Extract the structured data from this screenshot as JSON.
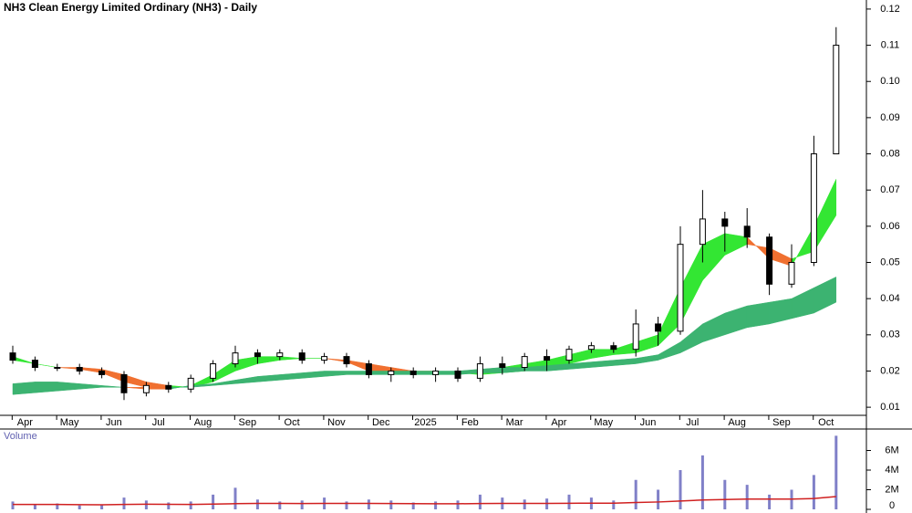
{
  "chart_data": [
    {
      "type": "candlestick",
      "title": "NH3 Clean Energy Limited Ordinary (NH3) - Daily",
      "xticks": [
        {
          "value": 0.3,
          "label": "Apr"
        },
        {
          "value": 2.3,
          "label": "May"
        },
        {
          "value": 4.3,
          "label": "Jun"
        },
        {
          "value": 6.3,
          "label": "Jul"
        },
        {
          "value": 8.3,
          "label": "Aug"
        },
        {
          "value": 10.3,
          "label": "Sep"
        },
        {
          "value": 12.3,
          "label": "Oct"
        },
        {
          "value": 14.3,
          "label": "Nov"
        },
        {
          "value": 16.3,
          "label": "Dec"
        },
        {
          "value": 18.3,
          "label": "2025"
        },
        {
          "value": 20.3,
          "label": "Feb"
        },
        {
          "value": 22.3,
          "label": "Mar"
        },
        {
          "value": 24.3,
          "label": "Apr"
        },
        {
          "value": 26.3,
          "label": "May"
        },
        {
          "value": 28.3,
          "label": "Jun"
        },
        {
          "value": 30.3,
          "label": "Jul"
        },
        {
          "value": 32.3,
          "label": "Aug"
        },
        {
          "value": 34.3,
          "label": "Sep"
        },
        {
          "value": 36.3,
          "label": "Oct"
        }
      ],
      "ylim": [
        0.0065,
        0.1225
      ],
      "yticks": [
        0.01,
        0.02,
        0.03,
        0.04,
        0.05,
        0.06,
        0.07,
        0.08,
        0.09,
        0.1,
        0.11,
        0.12
      ],
      "ytick_labels": [
        "0.01",
        "0.02",
        "0.03",
        "0.04",
        "0.05",
        "0.06",
        "0.07",
        "0.08",
        "0.09",
        "0.10",
        "0.11",
        "0.12"
      ],
      "open": [
        0.025,
        0.023,
        0.021,
        0.021,
        0.02,
        0.019,
        0.014,
        0.016,
        0.015,
        0.018,
        0.022,
        0.025,
        0.024,
        0.025,
        0.023,
        0.024,
        0.022,
        0.019,
        0.02,
        0.019,
        0.02,
        0.018,
        0.022,
        0.021,
        0.024,
        0.023,
        0.026,
        0.027,
        0.026,
        0.033,
        0.031,
        0.055,
        0.062,
        0.06,
        0.057,
        0.044,
        0.05,
        0.08
      ],
      "high": [
        0.027,
        0.024,
        0.022,
        0.022,
        0.021,
        0.02,
        0.017,
        0.017,
        0.019,
        0.023,
        0.027,
        0.026,
        0.026,
        0.026,
        0.025,
        0.025,
        0.023,
        0.021,
        0.021,
        0.021,
        0.021,
        0.024,
        0.024,
        0.025,
        0.026,
        0.027,
        0.028,
        0.028,
        0.037,
        0.035,
        0.06,
        0.07,
        0.064,
        0.065,
        0.058,
        0.055,
        0.085,
        0.115
      ],
      "low": [
        0.022,
        0.02,
        0.02,
        0.019,
        0.018,
        0.012,
        0.013,
        0.014,
        0.014,
        0.017,
        0.021,
        0.022,
        0.023,
        0.022,
        0.022,
        0.021,
        0.018,
        0.017,
        0.018,
        0.017,
        0.017,
        0.017,
        0.019,
        0.02,
        0.02,
        0.022,
        0.025,
        0.025,
        0.024,
        0.027,
        0.03,
        0.05,
        0.053,
        0.054,
        0.041,
        0.043,
        0.049,
        0.08
      ],
      "close": [
        0.023,
        0.021,
        0.021,
        0.02,
        0.019,
        0.014,
        0.016,
        0.015,
        0.018,
        0.022,
        0.025,
        0.024,
        0.025,
        0.023,
        0.024,
        0.022,
        0.019,
        0.02,
        0.019,
        0.02,
        0.018,
        0.022,
        0.021,
        0.024,
        0.023,
        0.026,
        0.027,
        0.026,
        0.033,
        0.031,
        0.055,
        0.062,
        0.06,
        0.057,
        0.044,
        0.05,
        0.08,
        0.11
      ],
      "ribbons": [
        {
          "up_color": "#33e633",
          "down_color": "#f07030",
          "fast": [
            0.024,
            0.022,
            0.021,
            0.0205,
            0.0195,
            0.017,
            0.0155,
            0.015,
            0.016,
            0.019,
            0.023,
            0.024,
            0.024,
            0.0235,
            0.0235,
            0.0225,
            0.02,
            0.0195,
            0.0195,
            0.0195,
            0.019,
            0.02,
            0.021,
            0.022,
            0.023,
            0.0245,
            0.026,
            0.026,
            0.028,
            0.03,
            0.043,
            0.055,
            0.058,
            0.057,
            0.051,
            0.049,
            0.06,
            0.073
          ],
          "slow": [
            0.023,
            0.022,
            0.021,
            0.021,
            0.0205,
            0.019,
            0.017,
            0.016,
            0.0155,
            0.017,
            0.02,
            0.022,
            0.023,
            0.0235,
            0.0235,
            0.023,
            0.022,
            0.021,
            0.02,
            0.02,
            0.0195,
            0.019,
            0.0195,
            0.02,
            0.021,
            0.022,
            0.0235,
            0.0245,
            0.025,
            0.027,
            0.033,
            0.045,
            0.052,
            0.055,
            0.054,
            0.051,
            0.053,
            0.063
          ]
        },
        {
          "up_color": "#3cb371",
          "down_color": "#f07030",
          "fast": [
            0.0165,
            0.017,
            0.017,
            0.0165,
            0.016,
            0.0155,
            0.015,
            0.015,
            0.016,
            0.0165,
            0.0175,
            0.0185,
            0.019,
            0.0195,
            0.02,
            0.02,
            0.02,
            0.02,
            0.02,
            0.02,
            0.02,
            0.0205,
            0.021,
            0.021,
            0.0215,
            0.022,
            0.0225,
            0.023,
            0.0235,
            0.0245,
            0.028,
            0.033,
            0.036,
            0.038,
            0.039,
            0.04,
            0.043,
            0.046
          ],
          "slow": [
            0.0135,
            0.014,
            0.0145,
            0.015,
            0.0155,
            0.0155,
            0.0155,
            0.0155,
            0.0155,
            0.016,
            0.0165,
            0.017,
            0.0175,
            0.018,
            0.0185,
            0.019,
            0.019,
            0.019,
            0.019,
            0.019,
            0.019,
            0.0195,
            0.0195,
            0.02,
            0.02,
            0.0205,
            0.021,
            0.0215,
            0.022,
            0.023,
            0.025,
            0.028,
            0.03,
            0.032,
            0.033,
            0.0345,
            0.036,
            0.039
          ]
        }
      ]
    },
    {
      "type": "bar",
      "title": "Volume",
      "ylim": [
        0,
        8000000
      ],
      "yticks": [
        0,
        {
          "value": 2000000,
          "label": "2M"
        },
        {
          "value": 4000000,
          "label": "4M"
        },
        {
          "value": 6000000,
          "label": "6M"
        }
      ],
      "series": [
        {
          "color": "#8080c8",
          "values": [
            800000,
            500000,
            600000,
            400000,
            500000,
            1200000,
            900000,
            700000,
            800000,
            1500000,
            2200000,
            1000000,
            800000,
            900000,
            1200000,
            800000,
            1000000,
            900000,
            700000,
            800000,
            900000,
            1500000,
            1200000,
            1000000,
            1100000,
            1500000,
            1200000,
            900000,
            3000000,
            2000000,
            4000000,
            5500000,
            3000000,
            2500000,
            1500000,
            2000000,
            3500000,
            7500000
          ]
        },
        {
          "color": "#d02020",
          "values": [
            500000,
            500000,
            500000,
            480000,
            470000,
            500000,
            520000,
            510000,
            500000,
            530000,
            580000,
            600000,
            600000,
            590000,
            600000,
            600000,
            600000,
            590000,
            580000,
            570000,
            570000,
            590000,
            600000,
            600000,
            600000,
            620000,
            630000,
            630000,
            700000,
            750000,
            850000,
            950000,
            1000000,
            1050000,
            1050000,
            1050000,
            1100000,
            1300000
          ]
        }
      ]
    }
  ]
}
